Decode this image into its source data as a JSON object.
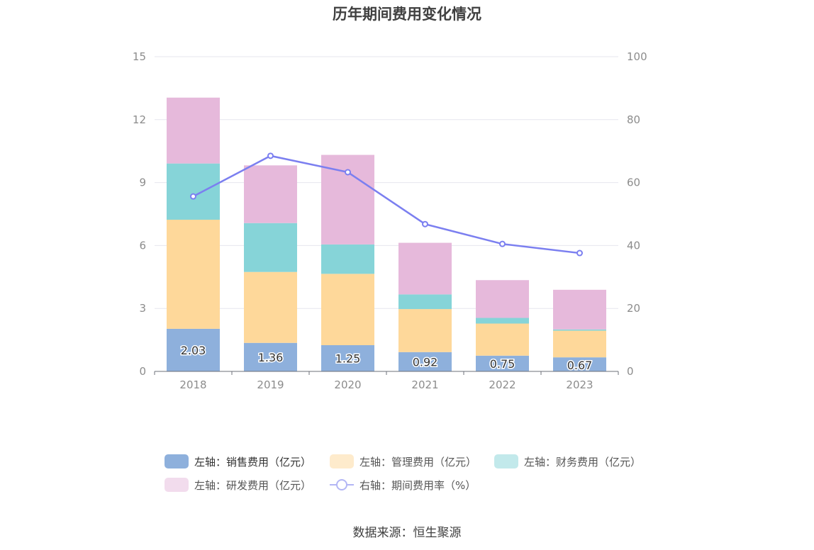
{
  "title": "历年期间费用变化情况",
  "source": "数据来源：恒生聚源",
  "chart_data": {
    "type": "bar",
    "stacked": true,
    "categories": [
      "2018",
      "2019",
      "2020",
      "2021",
      "2022",
      "2023"
    ],
    "y_left": {
      "ylim": [
        0,
        15
      ],
      "ticks": [
        "0",
        "3",
        "6",
        "9",
        "12",
        "15"
      ]
    },
    "y_right": {
      "ylim": [
        0,
        100
      ],
      "ticks": [
        "0",
        "20",
        "40",
        "60",
        "80",
        "100"
      ]
    },
    "grid": true,
    "legend_position": "bottom",
    "series": [
      {
        "name": "左轴：销售费用（亿元）",
        "type": "bar",
        "axis": "left",
        "color": "#8eb0dc",
        "values": [
          2.03,
          1.36,
          1.25,
          0.92,
          0.75,
          0.67
        ],
        "labels": [
          "2.03",
          "1.36",
          "1.25",
          "0.92",
          "0.75",
          "0.67"
        ]
      },
      {
        "name": "左轴：管理费用（亿元）",
        "type": "bar",
        "axis": "left",
        "color": "#fed89a",
        "values": [
          5.2,
          3.38,
          3.4,
          2.05,
          1.53,
          1.27
        ]
      },
      {
        "name": "左轴：财务费用（亿元）",
        "type": "bar",
        "axis": "left",
        "color": "#86d4d8",
        "values": [
          2.68,
          2.33,
          1.4,
          0.7,
          0.27,
          0.06
        ]
      },
      {
        "name": "左轴：研发费用（亿元）",
        "type": "bar",
        "axis": "left",
        "color": "#e6b9db",
        "values": [
          3.14,
          2.75,
          4.27,
          2.46,
          1.8,
          1.89
        ]
      },
      {
        "name": "右轴：期间费用率（%）",
        "type": "line",
        "axis": "right",
        "color": "#7b7ff0",
        "values": [
          55.6,
          68.5,
          63.3,
          46.8,
          40.5,
          37.6
        ]
      }
    ]
  }
}
